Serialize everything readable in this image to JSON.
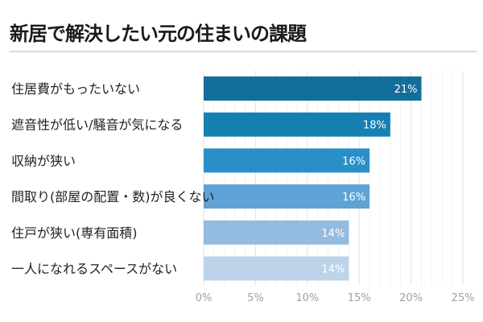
{
  "chart_data": {
    "type": "bar",
    "orientation": "horizontal",
    "title": "新居で解決したい元の住まいの課題",
    "xlabel": "",
    "ylabel": "",
    "xlim": [
      0,
      25
    ],
    "x_ticks": [
      "0%",
      "5%",
      "10%",
      "15%",
      "20%",
      "25%"
    ],
    "x_tick_values": [
      0,
      5,
      10,
      15,
      20,
      25
    ],
    "grid": true,
    "categories": [
      "住居費がもったいない",
      "遮音性が低い/騒音が気になる",
      "収納が狭い",
      "間取り(部屋の配置・数)が良くない",
      "住戸が狭い(専有面積)",
      "一人になれるスペースがない"
    ],
    "values": [
      21,
      18,
      16,
      16,
      14,
      14
    ],
    "value_labels": [
      "21%",
      "18%",
      "16%",
      "16%",
      "14%",
      "14%"
    ],
    "colors": [
      "#136e99",
      "#1680b3",
      "#2a8fc6",
      "#5fa3d6",
      "#93bbe0",
      "#bcd3ea"
    ],
    "grid_color": "#e6e6e6",
    "minor_grid_color": "#f2f2f2"
  }
}
